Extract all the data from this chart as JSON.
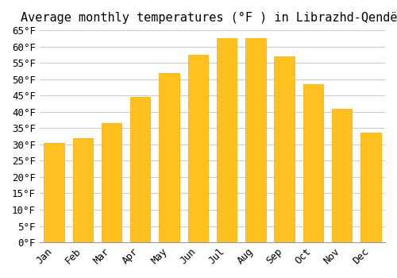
{
  "title": "Average monthly temperatures (°F ) in Librazhd-Qendër",
  "months": [
    "Jan",
    "Feb",
    "Mar",
    "Apr",
    "May",
    "Jun",
    "Jul",
    "Aug",
    "Sep",
    "Oct",
    "Nov",
    "Dec"
  ],
  "values": [
    30.5,
    32,
    36.5,
    44.5,
    52,
    57.5,
    62.5,
    62.5,
    57,
    48.5,
    41,
    33.5
  ],
  "bar_color": "#FFC020",
  "bar_edge_color": "#FFA500",
  "background_color": "#FFFFFF",
  "grid_color": "#CCCCCC",
  "ylim": [
    0,
    65
  ],
  "yticks": [
    0,
    5,
    10,
    15,
    20,
    25,
    30,
    35,
    40,
    45,
    50,
    55,
    60,
    65
  ],
  "title_fontsize": 11,
  "tick_fontsize": 9,
  "font_family": "monospace"
}
